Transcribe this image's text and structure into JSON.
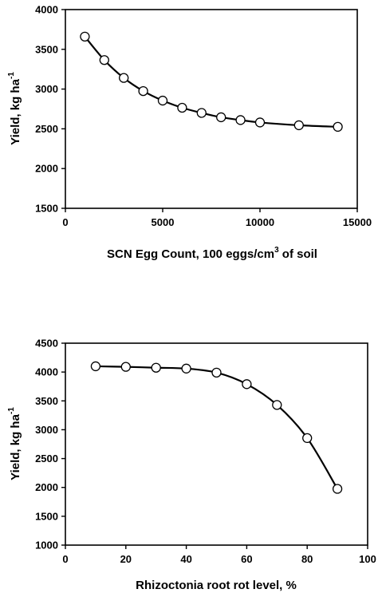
{
  "chart_data": [
    {
      "type": "line",
      "x": [
        1000,
        2000,
        3000,
        4000,
        5000,
        6000,
        7000,
        8000,
        9000,
        10000,
        12000,
        14000
      ],
      "series": [
        {
          "values": [
            3660,
            3365,
            3140,
            2975,
            2855,
            2765,
            2700,
            2645,
            2610,
            2580,
            2545,
            2525
          ]
        }
      ],
      "xlim": [
        0,
        15000
      ],
      "ylim": [
        1500,
        4000
      ],
      "xticks": [
        "0",
        "5000",
        "10000",
        "15000"
      ],
      "yticks": [
        "1500",
        "2000",
        "2500",
        "3000",
        "3500",
        "4000"
      ],
      "xlabel_main": "SCN Egg Count, 100 eggs/cm",
      "xlabel_sup": "3",
      "xlabel_tail": " of soil",
      "ylabel_main": "Yield, kg ha",
      "ylabel_sup": "-1",
      "title": "",
      "grid": false,
      "markers": "open-circle"
    },
    {
      "type": "line",
      "x": [
        10,
        20,
        30,
        40,
        50,
        60,
        70,
        80,
        90
      ],
      "series": [
        {
          "values": [
            4100,
            4090,
            4075,
            4060,
            3990,
            3790,
            3430,
            2855,
            1975
          ]
        }
      ],
      "xlim": [
        0,
        100
      ],
      "ylim": [
        1000,
        4500
      ],
      "xticks": [
        "0",
        "20",
        "40",
        "60",
        "80",
        "100"
      ],
      "yticks": [
        "1000",
        "1500",
        "2000",
        "2500",
        "3000",
        "3500",
        "4000",
        "4500"
      ],
      "xlabel_main": "Rhizoctonia root rot level, %",
      "xlabel_sup": "",
      "xlabel_tail": "",
      "ylabel_main": "Yield, kg ha",
      "ylabel_sup": "-1",
      "title": "",
      "grid": false,
      "markers": "open-circle"
    }
  ]
}
